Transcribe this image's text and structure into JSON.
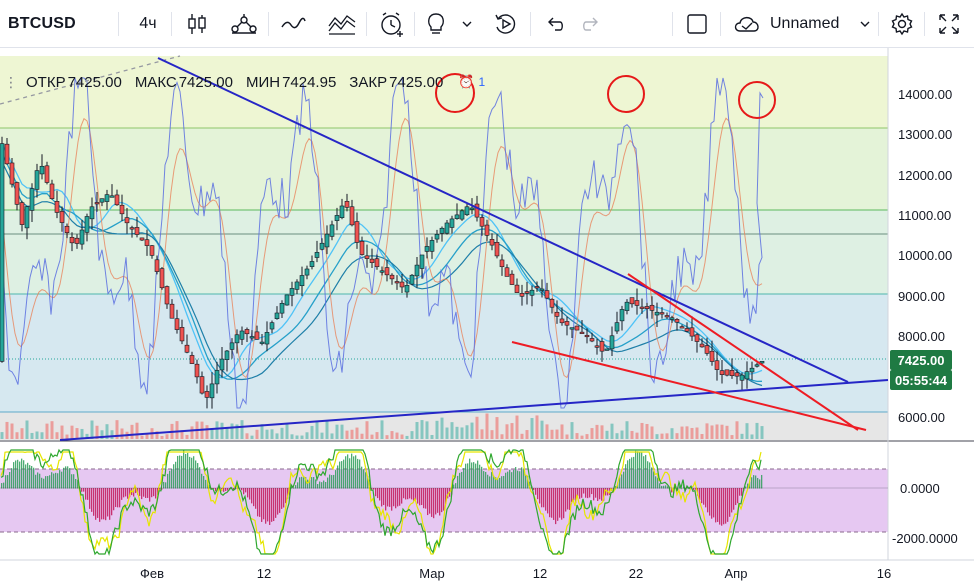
{
  "toolbar": {
    "symbol": "BTCUSD",
    "interval": "4ч",
    "layout_name": "Unnamed"
  },
  "legend": {
    "open_label": "ОТКР",
    "open_value": "7425.00",
    "high_label": "МАКС",
    "high_value": "7425.00",
    "low_label": "МИН",
    "low_value": "7424.95",
    "close_label": "ЗАКР",
    "close_value": "7425.00",
    "alerts_count": "1"
  },
  "price_axis": {
    "ticks": [
      "14000.00",
      "13000.00",
      "12000.00",
      "11000.00",
      "10000.00",
      "9000.00",
      "8000.00",
      "6000.00"
    ],
    "last_price": "7425.00",
    "countdown": "05:55:44"
  },
  "oscillator_axis": {
    "ticks": [
      "0.0000",
      "-2000.0000"
    ]
  },
  "time_axis": {
    "labels": [
      "Фев",
      "12",
      "Мар",
      "12",
      "22",
      "Апр",
      "16"
    ]
  },
  "colors": {
    "up": "#26a69a",
    "down": "#ef5350",
    "trendline_blue": "#2626c6",
    "trendline_red": "#ee1c24",
    "circle": "#e61919",
    "price_label_bg": "#1f7a43"
  },
  "icons": [
    "candles-icon",
    "indicators-icon",
    "compare-icon",
    "templates-icon",
    "alert-clock-icon",
    "ideas-bulb-icon",
    "replay-icon",
    "undo-icon",
    "redo-icon",
    "layout-square-icon",
    "cloud-icon",
    "gear-icon",
    "fullscreen-icon"
  ]
}
